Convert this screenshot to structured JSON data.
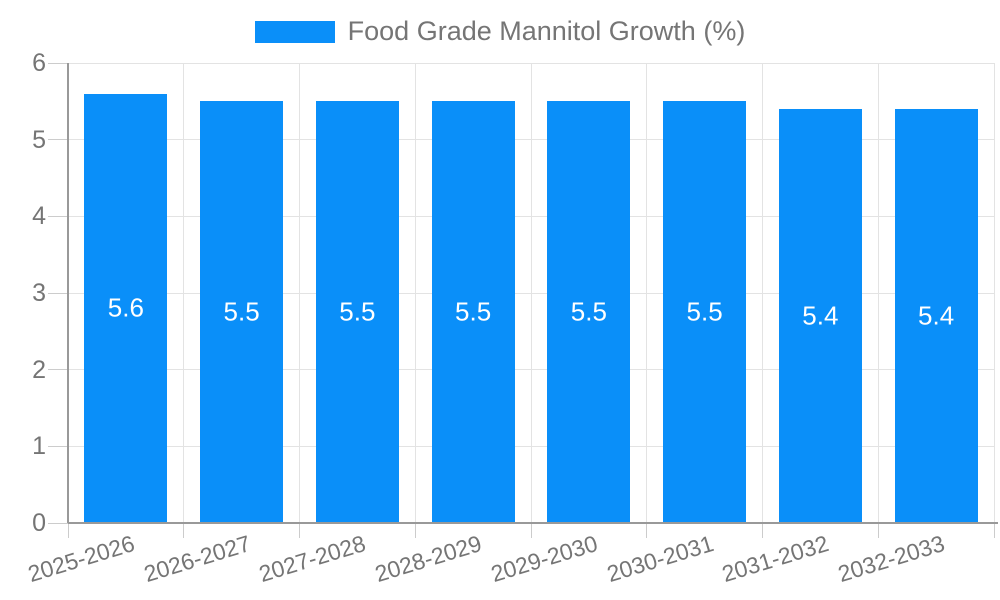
{
  "chart_data": {
    "type": "bar",
    "title": "Food Grade Mannitol Growth (%)",
    "categories": [
      "2025-2026",
      "2026-2027",
      "2027-2028",
      "2028-2029",
      "2029-2030",
      "2030-2031",
      "2031-2032",
      "2032-2033"
    ],
    "values": [
      5.6,
      5.5,
      5.5,
      5.5,
      5.5,
      5.5,
      5.4,
      5.4
    ],
    "xlabel": "",
    "ylabel": "",
    "ylim": [
      0,
      6
    ],
    "ytick_labels": [
      "0",
      "1",
      "2",
      "3",
      "4",
      "5",
      "6"
    ],
    "grid": true,
    "legend_position": "top-center",
    "colors": {
      "bar": "#0a8ff9",
      "value_label": "#ffffff",
      "axis_text": "#757575",
      "grid_line": "#e3e3e3",
      "tick_line": "#cccccc",
      "axis_line": "#999999",
      "background": "#ffffff"
    }
  }
}
